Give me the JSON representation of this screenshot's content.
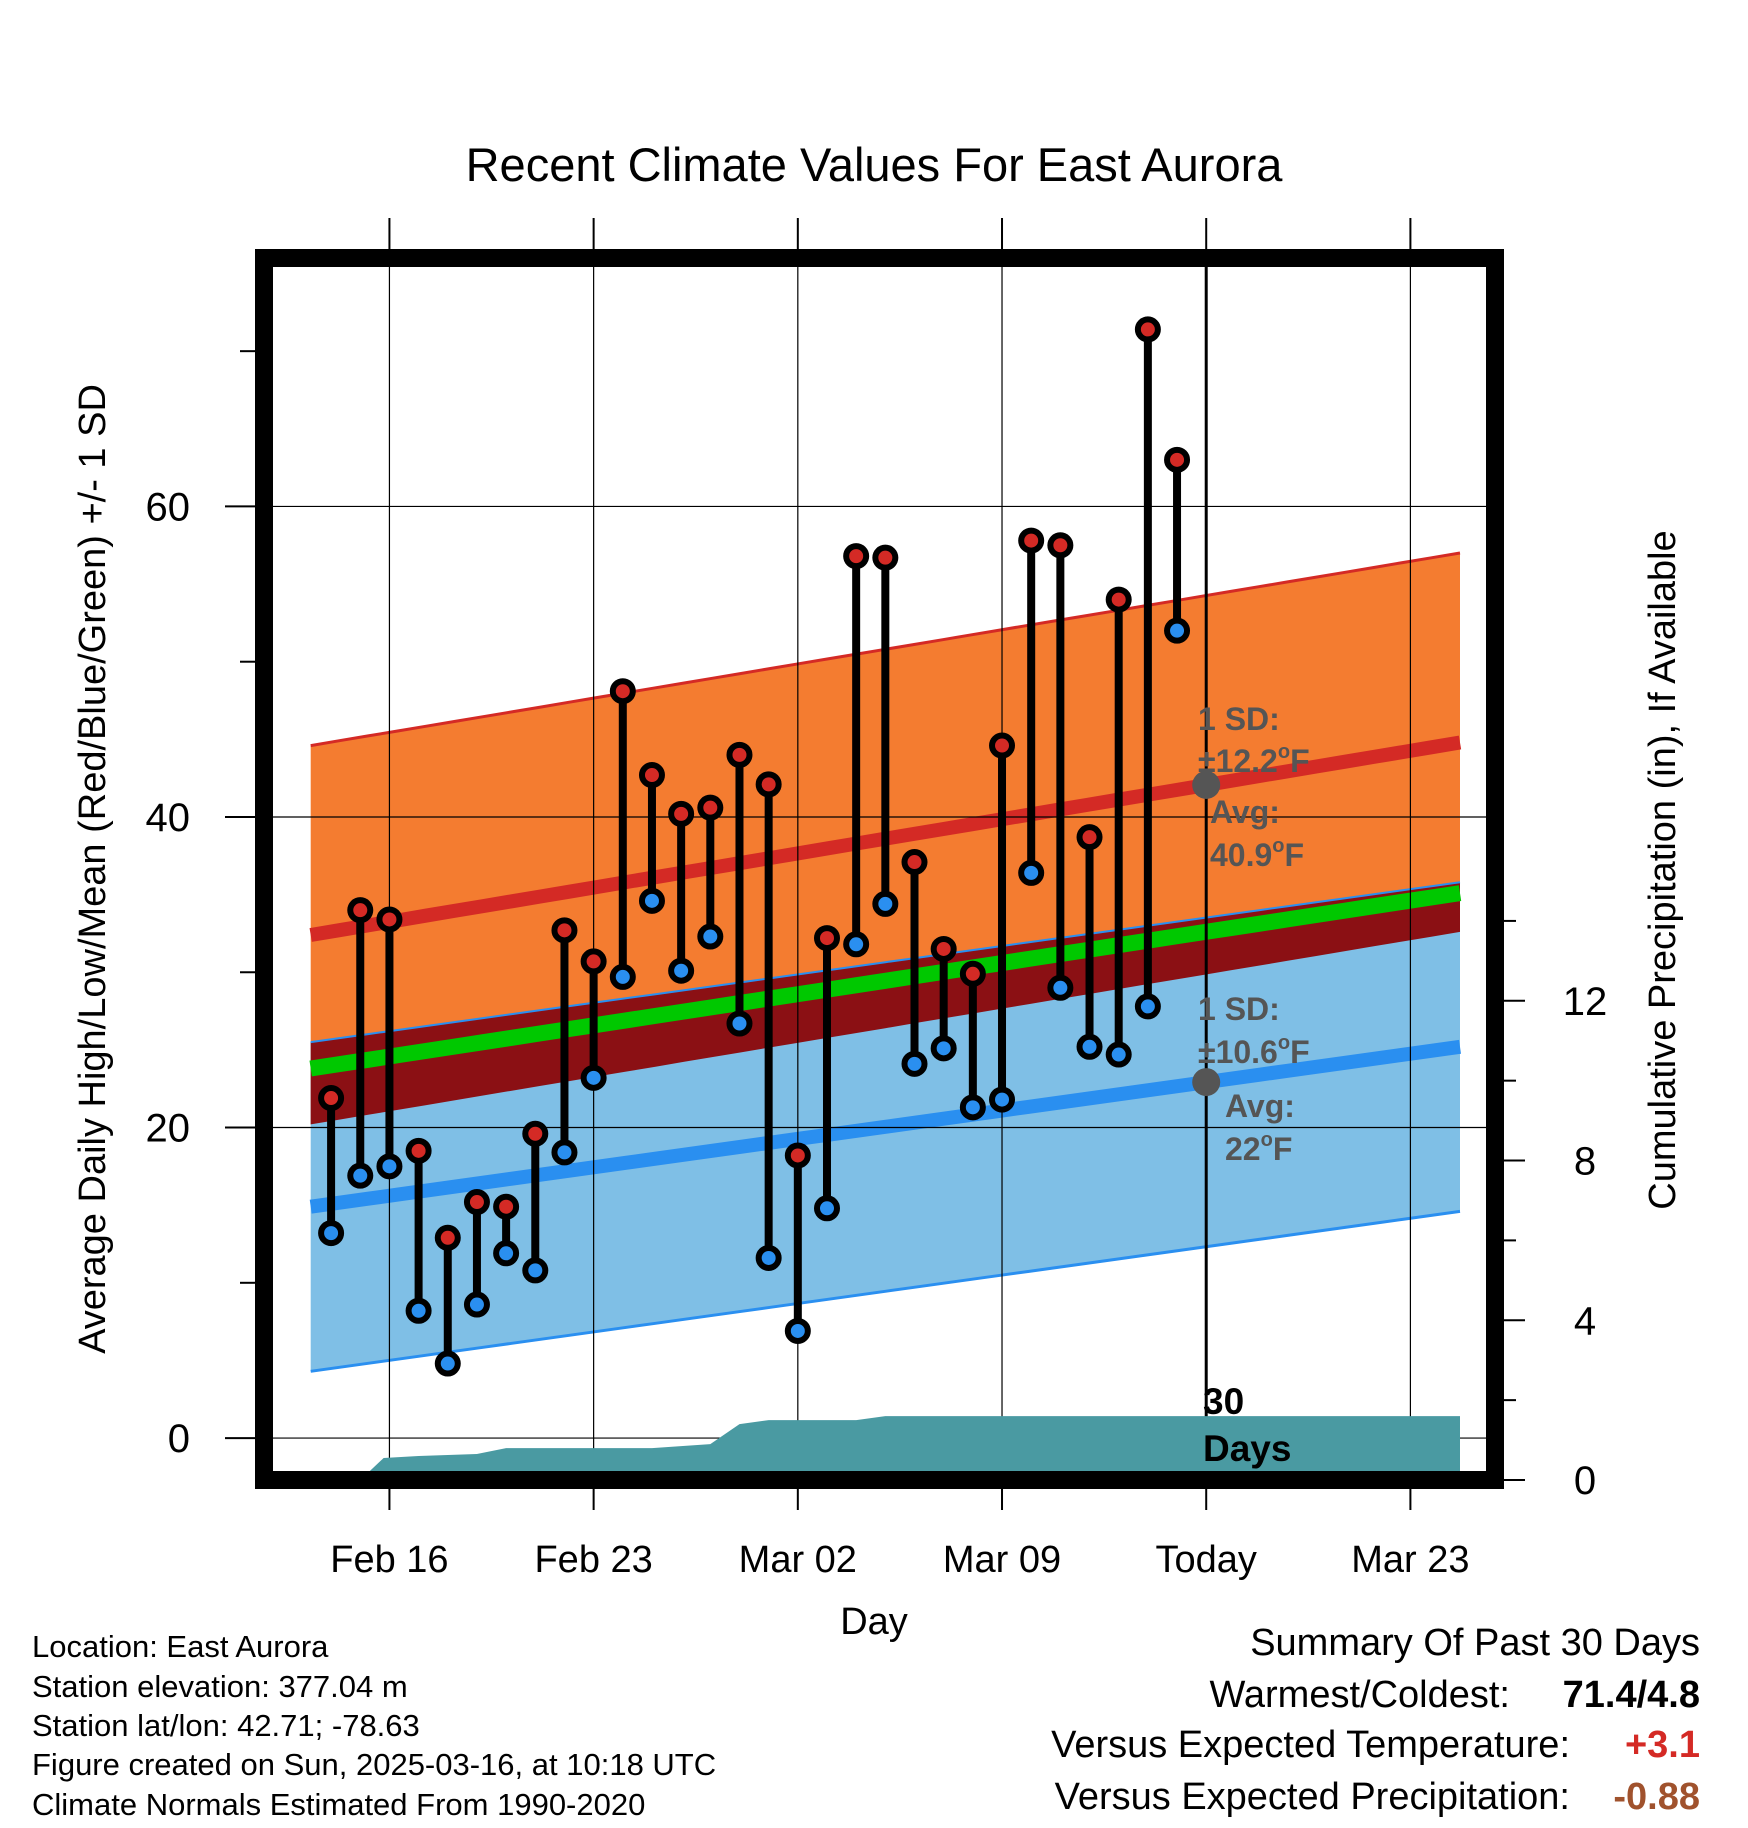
{
  "chart_data": {
    "type": "line",
    "title": "Recent Climate Values For East Aurora",
    "xlabel": "Day",
    "ylabel": "Average Daily High/Low/Mean (Red/Blue/Green) +/- 1 SD",
    "y2label": "Cumulative Precipitation (in), If Available",
    "ylim": [
      -2.7,
      76
    ],
    "y2lim": [
      0,
      30.6
    ],
    "yticks": [
      "0",
      "20",
      "40",
      "60"
    ],
    "y2ticks": [
      "0",
      "4",
      "8",
      "12"
    ],
    "xlim": [
      -4.3,
      37.9
    ],
    "xticks": [
      {
        "label": "Feb 16",
        "day": 0
      },
      {
        "label": "Feb 23",
        "day": 7
      },
      {
        "label": "Mar 02",
        "day": 14
      },
      {
        "label": "Mar 09",
        "day": 21
      },
      {
        "label": "Today",
        "day": 28
      },
      {
        "label": "Mar 23",
        "day": 35
      }
    ],
    "grid": true,
    "colors": {
      "high_band": "#f47c30",
      "low_band": "#7fbfe6",
      "overlap": "#8b1014",
      "mean": "#00c800",
      "high_line": "#d42a25",
      "low_line": "#2a8ff0",
      "precip": "#4a9aa2",
      "annotation": "#555555",
      "warm_value": "#d42a25",
      "precip_value": "#a0522d"
    },
    "normals": {
      "days": [
        -2.7,
        36.7
      ],
      "avg_high": [
        32.4,
        44.8
      ],
      "avg_low": [
        14.9,
        25.2
      ],
      "avg_mean": [
        23.8,
        35.1
      ],
      "high_sd": 12.2,
      "low_sd": 10.6
    },
    "daily": {
      "day": [
        -2,
        -1,
        0,
        1,
        2,
        3,
        4,
        5,
        6,
        7,
        8,
        9,
        10,
        11,
        12,
        13,
        14,
        15,
        16,
        17,
        18,
        19,
        20,
        21,
        22,
        23,
        24,
        25,
        26,
        27
      ],
      "high": [
        21.9,
        34.0,
        33.4,
        18.5,
        12.9,
        15.2,
        14.9,
        19.6,
        32.7,
        30.7,
        48.1,
        42.7,
        40.2,
        40.6,
        44.0,
        42.1,
        18.2,
        32.2,
        56.8,
        56.7,
        37.1,
        31.5,
        29.9,
        44.6,
        57.8,
        57.5,
        38.7,
        54.0,
        71.4,
        63.0
      ],
      "low": [
        13.2,
        16.9,
        17.5,
        8.2,
        4.8,
        8.6,
        11.9,
        10.8,
        18.4,
        23.2,
        29.7,
        34.6,
        30.1,
        32.3,
        26.7,
        11.6,
        6.9,
        14.8,
        31.8,
        34.4,
        24.1,
        25.1,
        21.3,
        21.8,
        36.4,
        29.0,
        25.2,
        24.7,
        27.8,
        52.0
      ]
    },
    "precip_cumulative": {
      "day": [
        -2,
        -1,
        -0.2,
        1,
        3,
        4,
        5,
        8,
        9,
        10,
        11,
        12,
        13,
        15,
        16,
        17,
        28,
        36.7
      ],
      "value": [
        0,
        0,
        0.55,
        0.6,
        0.65,
        0.8,
        0.8,
        0.8,
        0.8,
        0.85,
        0.9,
        1.4,
        1.5,
        1.5,
        1.5,
        1.6,
        1.6,
        1.6
      ]
    },
    "annotations": {
      "high_sd": [
        "1 SD:",
        "±12.2",
        "F"
      ],
      "high_avg": [
        "Avg:",
        "40.9",
        "F"
      ],
      "low_sd": [
        "1 SD:",
        "±10.6",
        "F"
      ],
      "low_avg": [
        "Avg:",
        "22",
        "F"
      ],
      "degree_mark": "o",
      "window": [
        "30",
        "Days"
      ]
    }
  },
  "footer": {
    "location": "Location: East Aurora",
    "elevation": "Station elevation: 377.04 m",
    "latlon": "Station lat/lon: 42.71; -78.63",
    "created": "Figure created on Sun, 2025-03-16, at 10:18 UTC",
    "normals": "Climate Normals Estimated From 1990-2020"
  },
  "summary": {
    "title": "Summary Of Past 30 Days",
    "warmest_label": "Warmest/Coldest:",
    "warmest_value": "71.4/4.8",
    "temp_label": "Versus Expected Temperature:",
    "temp_value": "+3.1",
    "precip_label": "Versus Expected Precipitation:",
    "precip_value": "-0.88"
  }
}
